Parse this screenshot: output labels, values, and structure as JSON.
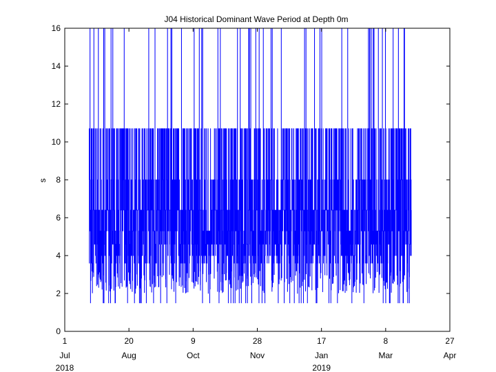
{
  "chart_data": {
    "type": "line",
    "title": "J04 Historical Dominant Wave Period at Depth 0m",
    "xlabel": "",
    "ylabel": "s",
    "ylim": [
      0,
      16
    ],
    "xlim": [
      "2018-07-01",
      "2019-04-27"
    ],
    "grid": false,
    "legend": "none",
    "y_ticks": [
      "0",
      "2",
      "4",
      "6",
      "8",
      "10",
      "12",
      "14",
      "16"
    ],
    "x_ticks": [
      {
        "day": "1",
        "month": "Jul",
        "year": "2018",
        "date": "2018-07-01"
      },
      {
        "day": "20",
        "month": "Aug",
        "year": "",
        "date": "2018-08-20"
      },
      {
        "day": "9",
        "month": "Oct",
        "year": "",
        "date": "2018-10-09"
      },
      {
        "day": "28",
        "month": "Nov",
        "year": "",
        "date": "2018-11-28"
      },
      {
        "day": "17",
        "month": "Jan",
        "year": "2019",
        "date": "2019-01-17"
      },
      {
        "day": "8",
        "month": "Mar",
        "year": "",
        "date": "2019-03-08"
      },
      {
        "day": "27",
        "month": "Apr",
        "year": "",
        "date": "2019-04-27"
      }
    ],
    "series": [
      {
        "name": "",
        "color": "#0000ff",
        "data_start": "2018-07-20",
        "data_end": "2019-03-28",
        "levels": [
          1.5,
          2.0,
          3.6,
          4.0,
          4.6,
          5.3,
          6.4,
          8.0,
          10.7,
          16.0
        ]
      }
    ]
  }
}
